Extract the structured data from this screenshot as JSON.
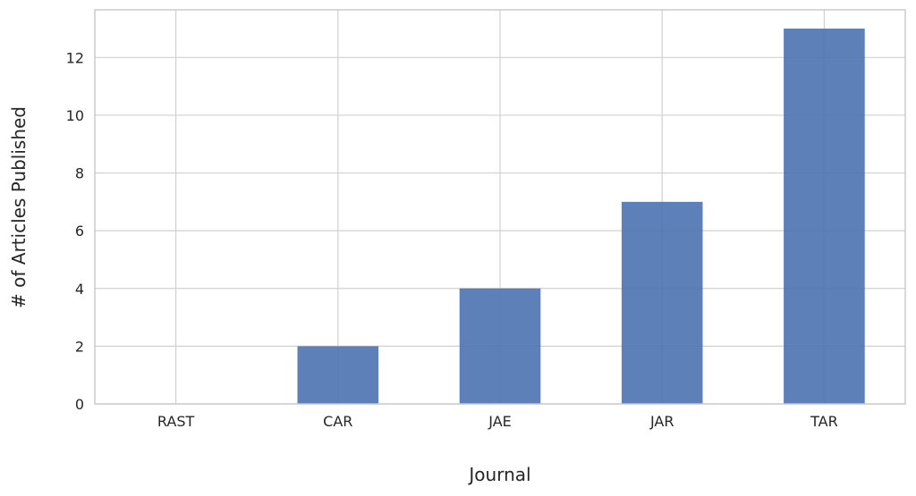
{
  "chart_data": {
    "type": "bar",
    "categories": [
      "RAST",
      "CAR",
      "JAE",
      "JAR",
      "TAR"
    ],
    "values": [
      0,
      2,
      4,
      7,
      13
    ],
    "title": "",
    "xlabel": "Journal",
    "ylabel": "# of Articles Published",
    "ylim": [
      0,
      13.65
    ],
    "yticks": [
      0,
      2,
      4,
      6,
      8,
      10,
      12
    ],
    "grid": true,
    "bar_color": "#4c72b0"
  }
}
